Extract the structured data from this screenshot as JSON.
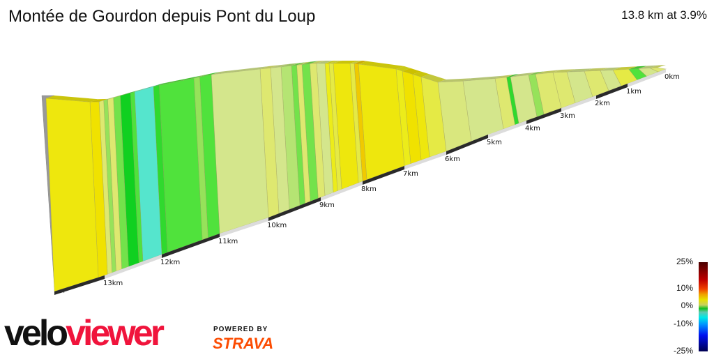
{
  "title": "Montée de Gourdon depuis Pont du Loup",
  "summary": "13.8 km at 3.9%",
  "branding": {
    "logo_part1": "velo",
    "logo_part2": "viewer",
    "powered_by": "POWERED BY",
    "strava": "STRAVA"
  },
  "legend": {
    "ticks": [
      "25%",
      "10%",
      "0%",
      "-10%",
      "-25%"
    ]
  },
  "chart_data": {
    "type": "area",
    "title": "",
    "xlabel": "",
    "ylabel": "",
    "x_unit": "km",
    "xlim": [
      0,
      13.8
    ],
    "x_ticks": [
      "0km",
      "1km",
      "2km",
      "3km",
      "4km",
      "5km",
      "6km",
      "7km",
      "8km",
      "9km",
      "10km",
      "11km",
      "12km",
      "13km"
    ],
    "color_scale": {
      "min": -25,
      "max": 25,
      "unit": "%"
    },
    "segments": [
      {
        "from": 0.0,
        "to": 0.2,
        "gradient": 4
      },
      {
        "from": 0.2,
        "to": 0.5,
        "gradient": 3
      },
      {
        "from": 0.5,
        "to": 0.75,
        "gradient": 1
      },
      {
        "from": 0.75,
        "to": 1.2,
        "gradient": 5
      },
      {
        "from": 1.2,
        "to": 1.6,
        "gradient": 3
      },
      {
        "from": 1.6,
        "to": 2.1,
        "gradient": 4
      },
      {
        "from": 2.1,
        "to": 2.6,
        "gradient": 3
      },
      {
        "from": 2.6,
        "to": 3.0,
        "gradient": 4
      },
      {
        "from": 3.0,
        "to": 3.5,
        "gradient": 4
      },
      {
        "from": 3.5,
        "to": 3.7,
        "gradient": 2
      },
      {
        "from": 3.7,
        "to": 4.2,
        "gradient": 3
      },
      {
        "from": 4.2,
        "to": 4.3,
        "gradient": 0.5
      },
      {
        "from": 4.3,
        "to": 4.6,
        "gradient": 4
      },
      {
        "from": 4.6,
        "to": 5.4,
        "gradient": 3
      },
      {
        "from": 5.4,
        "to": 6.0,
        "gradient": 3.5
      },
      {
        "from": 6.0,
        "to": 6.4,
        "gradient": 5
      },
      {
        "from": 6.4,
        "to": 6.6,
        "gradient": 7
      },
      {
        "from": 6.6,
        "to": 6.85,
        "gradient": 8
      },
      {
        "from": 6.85,
        "to": 7.0,
        "gradient": 6
      },
      {
        "from": 7.0,
        "to": 7.9,
        "gradient": 7
      },
      {
        "from": 7.9,
        "to": 8.0,
        "gradient": 8.5
      },
      {
        "from": 8.0,
        "to": 8.1,
        "gradient": 5
      },
      {
        "from": 8.1,
        "to": 8.5,
        "gradient": 7
      },
      {
        "from": 8.5,
        "to": 8.6,
        "gradient": 5
      },
      {
        "from": 8.6,
        "to": 8.7,
        "gradient": 6
      },
      {
        "from": 8.7,
        "to": 8.9,
        "gradient": 3
      },
      {
        "from": 8.9,
        "to": 9.05,
        "gradient": 4
      },
      {
        "from": 9.05,
        "to": 9.2,
        "gradient": 1.5
      },
      {
        "from": 9.2,
        "to": 9.3,
        "gradient": 4
      },
      {
        "from": 9.3,
        "to": 9.4,
        "gradient": 1.5
      },
      {
        "from": 9.4,
        "to": 9.6,
        "gradient": 2.5
      },
      {
        "from": 9.6,
        "to": 9.8,
        "gradient": 3
      },
      {
        "from": 9.8,
        "to": 10.0,
        "gradient": 4
      },
      {
        "from": 10.0,
        "to": 11.0,
        "gradient": 3
      },
      {
        "from": 11.0,
        "to": 11.2,
        "gradient": 1
      },
      {
        "from": 11.2,
        "to": 11.3,
        "gradient": 2
      },
      {
        "from": 11.3,
        "to": 11.9,
        "gradient": 1
      },
      {
        "from": 11.9,
        "to": 12.0,
        "gradient": 0.5
      },
      {
        "from": 12.0,
        "to": 12.33,
        "gradient": -3
      },
      {
        "from": 12.33,
        "to": 12.4,
        "gradient": 1
      },
      {
        "from": 12.4,
        "to": 12.58,
        "gradient": 0
      },
      {
        "from": 12.58,
        "to": 12.7,
        "gradient": 1.5
      },
      {
        "from": 12.7,
        "to": 12.8,
        "gradient": 4
      },
      {
        "from": 12.8,
        "to": 12.87,
        "gradient": 2
      },
      {
        "from": 12.87,
        "to": 12.95,
        "gradient": 4
      },
      {
        "from": 12.95,
        "to": 13.1,
        "gradient": 8
      },
      {
        "from": 13.1,
        "to": 13.8,
        "gradient": 7
      }
    ]
  }
}
